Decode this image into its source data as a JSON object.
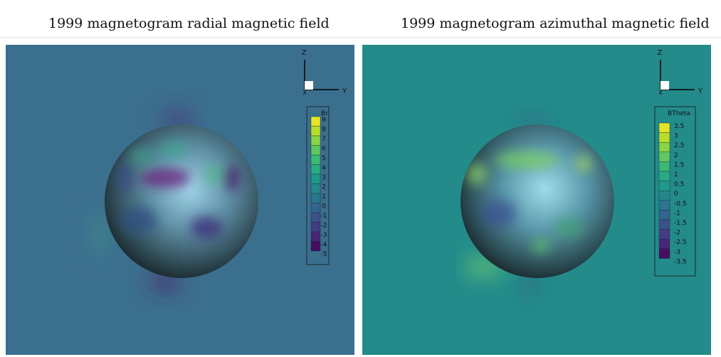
{
  "panels": [
    {
      "title": "1999 magnetogram radial magnetic field",
      "axes": {
        "z": "Z",
        "x": "X",
        "y": "Y"
      },
      "colorbar": {
        "title": "Br",
        "labels": [
          "9",
          "8",
          "7",
          "6",
          "5",
          "4",
          "3",
          "2",
          "1",
          "0",
          "-1",
          "-2",
          "-3",
          "-4",
          "-5"
        ]
      }
    },
    {
      "title": "1999 magnetogram azimuthal magnetic field",
      "axes": {
        "z": "Z",
        "x": "X",
        "y": "Y"
      },
      "colorbar": {
        "title": "BTheta",
        "labels": [
          "3.5",
          "3",
          "2.5",
          "2",
          "1.5",
          "1",
          "0.5",
          "0",
          "-0.5",
          "-1",
          "-1.5",
          "-2",
          "-2.5",
          "-3",
          "-3.5"
        ]
      }
    }
  ]
}
